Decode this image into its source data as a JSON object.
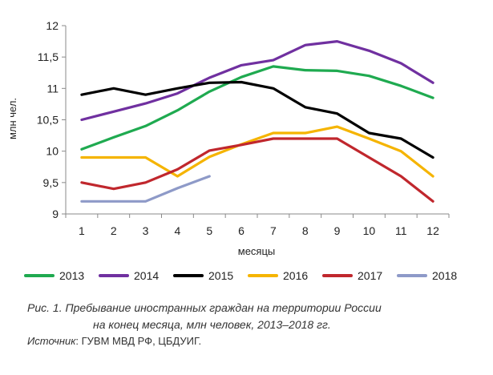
{
  "chart_data": {
    "type": "line",
    "categories": [
      "1",
      "2",
      "3",
      "4",
      "5",
      "6",
      "7",
      "8",
      "9",
      "10",
      "11",
      "12"
    ],
    "x": [
      1,
      2,
      3,
      4,
      5,
      6,
      7,
      8,
      9,
      10,
      11,
      12
    ],
    "ylabel": "млн чел.",
    "xlabel": "месяцы",
    "ylim": [
      9,
      12
    ],
    "yticks": [
      9,
      9.5,
      10,
      10.5,
      11,
      11.5,
      12
    ],
    "ytick_labels": [
      "9",
      "9,5",
      "10",
      "10,5",
      "11",
      "11,5",
      "12"
    ],
    "grid": "none",
    "legend": "bottom",
    "series": [
      {
        "name": "2013",
        "color": "#1faa50",
        "values": [
          10.03,
          10.22,
          10.4,
          10.65,
          10.95,
          11.18,
          11.35,
          11.29,
          11.28,
          11.2,
          11.04,
          10.85
        ]
      },
      {
        "name": "2014",
        "color": "#7030a0",
        "values": [
          10.5,
          10.63,
          10.76,
          10.92,
          11.17,
          11.37,
          11.45,
          11.69,
          11.75,
          11.6,
          11.4,
          11.09
        ]
      },
      {
        "name": "2015",
        "color": "#000000",
        "values": [
          10.9,
          11.0,
          10.9,
          11.0,
          11.09,
          11.1,
          11.0,
          10.7,
          10.6,
          10.29,
          10.2,
          9.9
        ]
      },
      {
        "name": "2016",
        "color": "#f5b400",
        "values": [
          9.9,
          9.9,
          9.9,
          9.6,
          9.91,
          10.11,
          10.29,
          10.29,
          10.39,
          10.2,
          10.0,
          9.6
        ]
      },
      {
        "name": "2017",
        "color": "#c0272d",
        "values": [
          9.5,
          9.4,
          9.5,
          9.71,
          10.01,
          10.1,
          10.2,
          10.2,
          10.2,
          9.9,
          9.6,
          9.2
        ]
      },
      {
        "name": "2018",
        "color": "#8e9ac8",
        "values": [
          9.2,
          9.2,
          9.2,
          9.41,
          9.6,
          null,
          null,
          null,
          null,
          null,
          null,
          null
        ]
      }
    ]
  },
  "caption": {
    "line1": "Рис. 1. Пребывание иностранных граждан на территории России",
    "line2": "на конец месяца, млн человек, 2013–2018 гг."
  },
  "source": {
    "key": "Источник",
    "text": ": ГУВМ МВД РФ, ЦБДУИГ."
  }
}
